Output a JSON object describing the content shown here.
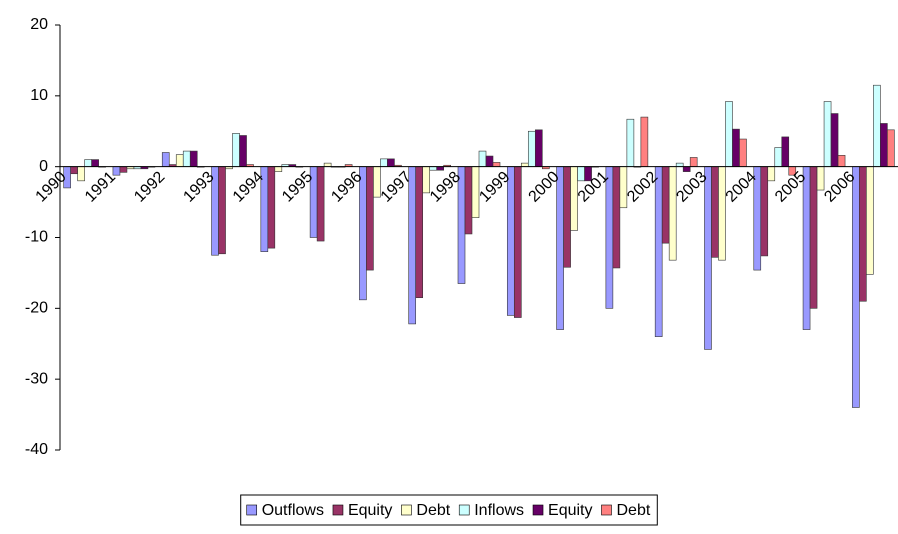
{
  "chart_data": {
    "type": "bar",
    "categories": [
      "1990",
      "1991",
      "1992",
      "1993",
      "1994",
      "1995",
      "1996",
      "1997",
      "1998",
      "1999",
      "2000",
      "2001",
      "2002",
      "2003",
      "2004",
      "2005",
      "2006"
    ],
    "series": [
      {
        "name": "Outflows",
        "color": "#9999ff",
        "values": [
          -3,
          -1.2,
          2,
          -12.5,
          -12,
          -10,
          -18.8,
          -22.2,
          -16.5,
          -21,
          -23,
          -20,
          -24,
          -25.8,
          -14.6,
          -23,
          -34
        ]
      },
      {
        "name": "Equity",
        "color": "#993366",
        "values": [
          -1,
          -0.8,
          0.3,
          -12.3,
          -11.5,
          -10.5,
          -14.6,
          -18.5,
          -9.5,
          -21.3,
          -14.2,
          -14.3,
          -10.8,
          -12.8,
          -12.6,
          -20,
          -19
        ]
      },
      {
        "name": "Debt",
        "color": "#ffffcc",
        "values": [
          -2,
          -0.3,
          1.7,
          -0.3,
          -0.7,
          0.5,
          -4.3,
          -3.7,
          -7.2,
          0.5,
          -9,
          -5.8,
          -13.2,
          -13.2,
          -2,
          -3.3,
          -15.2
        ]
      },
      {
        "name": "Inflows",
        "color": "#ccffff",
        "values": [
          1,
          -0.3,
          2.2,
          4.7,
          0.3,
          0,
          1.1,
          -0.5,
          2.2,
          5,
          -2,
          6.7,
          0.5,
          9.2,
          2.7,
          9.2,
          11.5
        ]
      },
      {
        "name": "Equity",
        "color": "#660066",
        "values": [
          1,
          -0.3,
          2.2,
          4.4,
          0.3,
          0,
          1.1,
          -0.5,
          1.5,
          5.2,
          -2,
          0,
          -0.7,
          5.3,
          4.2,
          7.5,
          6.1
        ]
      },
      {
        "name": "Debt",
        "color": "#ff8080",
        "values": [
          0,
          0,
          0,
          0.3,
          0,
          0.3,
          0.2,
          0.2,
          0.6,
          -0.3,
          0,
          7,
          1.3,
          3.9,
          -1.2,
          1.6,
          5.2
        ]
      }
    ],
    "ylim": [
      -40,
      20
    ],
    "yticks": [
      -40,
      -30,
      -20,
      -10,
      0,
      10,
      20
    ],
    "grid": false,
    "legend": "bottom"
  }
}
